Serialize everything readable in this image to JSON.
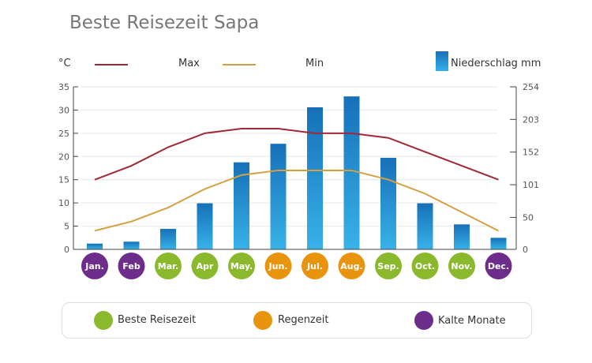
{
  "title": "Beste Reisezeit Sapa",
  "legend": {
    "unit_left": "°C",
    "max": "Max",
    "min": "Min",
    "precip": "Niederschlag mm"
  },
  "colors": {
    "max": "#a02838",
    "min": "#d4a040",
    "bar": "#1f8fd0",
    "green": "#8ab92d",
    "orange": "#e8940f",
    "purple": "#6c2e8a"
  },
  "categories_legend": [
    {
      "label": "Beste Reisezeit",
      "color": "#8ab92d"
    },
    {
      "label": "Regenzeit",
      "color": "#e8940f"
    },
    {
      "label": "Kalte Monate",
      "color": "#6c2e8a"
    }
  ],
  "chart_data": {
    "type": "bar",
    "categories": [
      "Jan.",
      "Feb",
      "Mar.",
      "Apr",
      "May.",
      "Jun.",
      "Jul.",
      "Aug.",
      "Sep.",
      "Oct.",
      "Nov.",
      "Dec."
    ],
    "month_category": [
      "purple",
      "purple",
      "green",
      "green",
      "green",
      "orange",
      "orange",
      "orange",
      "green",
      "green",
      "green",
      "purple"
    ],
    "series": [
      {
        "name": "Niederschlag mm",
        "type": "bar",
        "axis": "right",
        "values": [
          9,
          12,
          32,
          72,
          136,
          165,
          222,
          239,
          143,
          72,
          39,
          18
        ]
      },
      {
        "name": "Max",
        "type": "line",
        "axis": "left",
        "values": [
          15,
          18,
          22,
          25,
          26,
          26,
          25,
          25,
          24,
          21,
          18,
          15
        ]
      },
      {
        "name": "Min",
        "type": "line",
        "axis": "left",
        "values": [
          4,
          6,
          9,
          13,
          16,
          17,
          17,
          17,
          15,
          12,
          8,
          4
        ]
      }
    ],
    "ylim_left": [
      0,
      35
    ],
    "yticks_left": [
      "0",
      "5",
      "10",
      "15",
      "20",
      "25",
      "30",
      "35"
    ],
    "ylim_right": [
      0,
      254
    ],
    "yticks_right": [
      "0",
      "50",
      "101",
      "152",
      "203",
      "254"
    ],
    "grid": true
  }
}
